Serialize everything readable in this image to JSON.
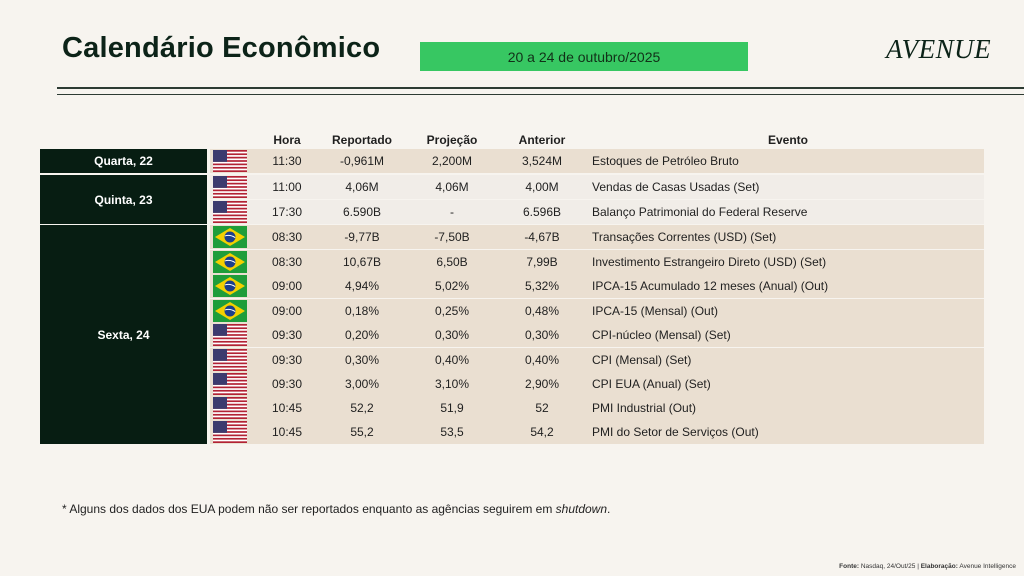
{
  "header": {
    "title": "Calendário Econômico",
    "date_range": "20 a 24 de outubro/2025",
    "logo_text": "AVENUE"
  },
  "colors": {
    "dark_green": "#071d12",
    "accent_green": "#37c762",
    "row_beige": "#eadfd1",
    "row_light": "#f1ede8",
    "page_bg": "#f7f4ef"
  },
  "table": {
    "columns": [
      "Hora",
      "Reportado",
      "Projeção",
      "Anterior",
      "Evento"
    ],
    "days": [
      {
        "label": "Quarta, 22"
      },
      {
        "label": "Quinta, 23"
      },
      {
        "label": "Sexta, 24"
      }
    ],
    "rows": [
      {
        "flag": "us-flag-icon",
        "hora": "11:30",
        "reportado": "-0,961M",
        "projecao": "2,200M",
        "anterior": "3,524M",
        "evento": "Estoques de Petróleo Bruto"
      },
      {
        "flag": "us-flag-icon",
        "hora": "11:00",
        "reportado": "4,06M",
        "projecao": "4,06M",
        "anterior": "4,00M",
        "evento": "Vendas de Casas Usadas (Set)"
      },
      {
        "flag": "us-flag-icon",
        "hora": "17:30",
        "reportado": "6.590B",
        "projecao": "-",
        "anterior": "6.596B",
        "evento": "Balanço Patrimonial do Federal Reserve"
      },
      {
        "flag": "br-flag-icon",
        "hora": "08:30",
        "reportado": "-9,77B",
        "projecao": "-7,50B",
        "anterior": "-4,67B",
        "evento": "Transações Correntes (USD) (Set)"
      },
      {
        "flag": "br-flag-icon",
        "hora": "08:30",
        "reportado": "10,67B",
        "projecao": "6,50B",
        "anterior": "7,99B",
        "evento": "Investimento Estrangeiro Direto (USD) (Set)"
      },
      {
        "flag": "br-flag-icon",
        "hora": "09:00",
        "reportado": "4,94%",
        "projecao": "5,02%",
        "anterior": "5,32%",
        "evento": "IPCA-15 Acumulado 12 meses (Anual) (Out)"
      },
      {
        "flag": "br-flag-icon",
        "hora": "09:00",
        "reportado": "0,18%",
        "projecao": "0,25%",
        "anterior": "0,48%",
        "evento": "IPCA-15 (Mensal) (Out)"
      },
      {
        "flag": "us-flag-icon",
        "hora": "09:30",
        "reportado": "0,20%",
        "projecao": "0,30%",
        "anterior": "0,30%",
        "evento": "CPI-núcleo (Mensal) (Set)"
      },
      {
        "flag": "us-flag-icon",
        "hora": "09:30",
        "reportado": "0,30%",
        "projecao": "0,40%",
        "anterior": "0,40%",
        "evento": "CPI (Mensal) (Set)"
      },
      {
        "flag": "us-flag-icon",
        "hora": "09:30",
        "reportado": "3,00%",
        "projecao": "3,10%",
        "anterior": "2,90%",
        "evento": "CPI EUA (Anual) (Set)"
      },
      {
        "flag": "us-flag-icon",
        "hora": "10:45",
        "reportado": "52,2",
        "projecao": "51,9",
        "anterior": "52",
        "evento": "PMI Industrial (Out)"
      },
      {
        "flag": "us-flag-icon",
        "hora": "10:45",
        "reportado": "55,2",
        "projecao": "53,5",
        "anterior": "54,2",
        "evento": "PMI do Setor de Serviços (Out)"
      }
    ]
  },
  "footnote": {
    "prefix": "* Alguns dos dados dos EUA podem não ser reportados enquanto as agências seguirem em ",
    "italic": "shutdown",
    "suffix": "."
  },
  "source": {
    "fonte_label": "Fonte:",
    "fonte_value": " Nasdaq, 24/Out/25 | ",
    "elaboracao_label": "Elaboração:",
    "elaboracao_value": " Avenue Intelligence"
  }
}
